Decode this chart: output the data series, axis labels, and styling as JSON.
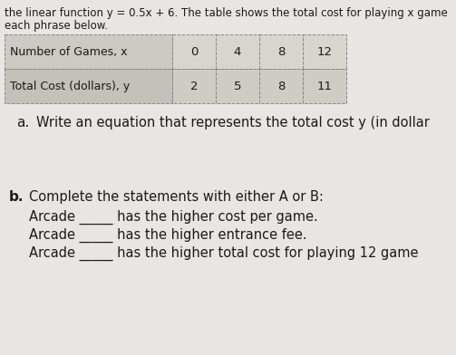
{
  "header_top": "the linear function y = 0.5x + 6. The table shows the total cost for playing x game",
  "header_sub": "each phrase below.",
  "col1_header": "Number of Games, x",
  "col2_header": "Total Cost (dollars), y",
  "x_values": [
    "0",
    "4",
    "8",
    "12"
  ],
  "y_values": [
    "2",
    "5",
    "8",
    "11"
  ],
  "part_a_label": "a.",
  "part_a_text": "Write an equation that represents the total cost y (in dollar",
  "part_b_label": "b.",
  "part_b_text": "Complete the statements with either A or B:",
  "arcade_line1": "Arcade _____ has the higher cost per game.",
  "arcade_line2": "Arcade _____ has the higher entrance fee.",
  "arcade_line3": "Arcade _____ has the higher total cost for playing 12 game",
  "bg_color": "#e8e6e3",
  "table_bg_label": "#d8d4cf",
  "table_bg_data": "#e2dedb",
  "table_border_color": "#888888",
  "text_color": "#1a1a1a",
  "fs_header": 8.5,
  "fs_table_label": 9.0,
  "fs_table_data": 9.5,
  "fs_body": 10.5,
  "fs_label": 11.0
}
